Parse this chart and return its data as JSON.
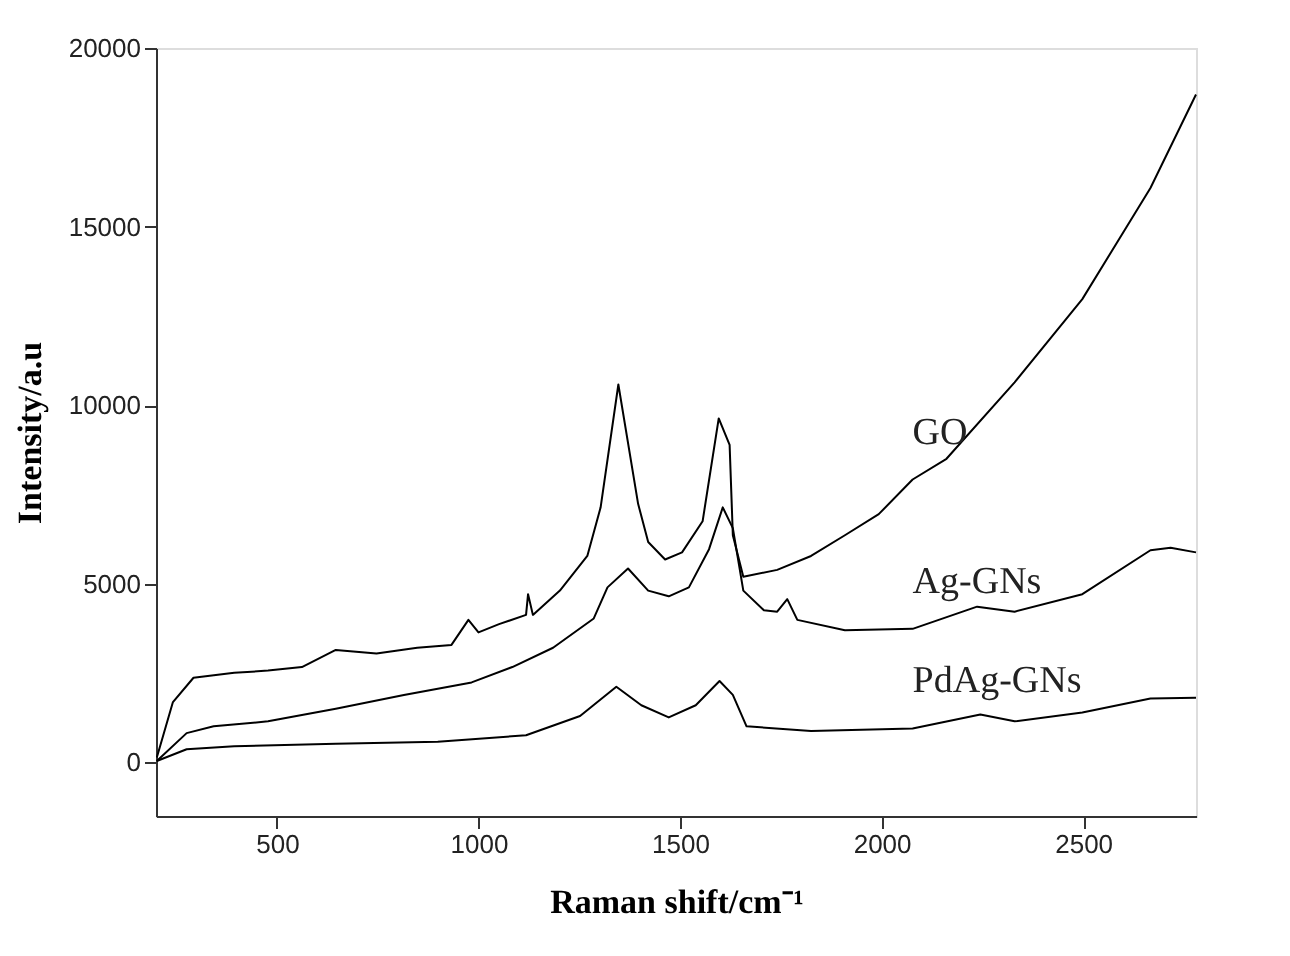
{
  "chart_data": {
    "type": "line",
    "xlabel": "Raman shift/cm⁻¹",
    "ylabel": "Intensity/a.u",
    "xlim": [
      200,
      2780
    ],
    "ylim": [
      -1500,
      20000
    ],
    "xticks": [
      500,
      1000,
      1500,
      2000,
      2500
    ],
    "yticks": [
      0,
      5000,
      10000,
      15000,
      20000
    ],
    "grid": false,
    "legend": false,
    "line_style": "solid",
    "series": [
      {
        "name": "GO",
        "color": "#000000",
        "x": [
          202,
          242,
          293,
          394,
          478,
          562,
          646,
          747,
          848,
          933,
          975,
          1000,
          1051,
          1118,
          1123,
          1135,
          1202,
          1270,
          1303,
          1347,
          1396,
          1421,
          1463,
          1505,
          1556,
          1596,
          1623,
          1631,
          1657,
          1741,
          1825,
          1909,
          1993,
          2077,
          2161,
          2330,
          2498,
          2667,
          2780
        ],
        "values": [
          136,
          1690,
          2370,
          2510,
          2570,
          2670,
          3150,
          3050,
          3210,
          3290,
          3990,
          3640,
          3870,
          4130,
          4710,
          4130,
          4810,
          5780,
          7140,
          10580,
          7240,
          6170,
          5680,
          5880,
          6750,
          9630,
          8890,
          6360,
          5200,
          5390,
          5780,
          6360,
          6950,
          7920,
          8500,
          10640,
          12970,
          16080,
          18700
        ]
      },
      {
        "name": "Ag-GNs",
        "color": "#000000",
        "x": [
          202,
          276,
          343,
          478,
          646,
          815,
          983,
          1084,
          1185,
          1286,
          1320,
          1371,
          1421,
          1472,
          1522,
          1572,
          1606,
          1631,
          1657,
          1708,
          1741,
          1766,
          1791,
          1909,
          2077,
          2237,
          2330,
          2498,
          2667,
          2717,
          2780
        ],
        "values": [
          40,
          820,
          1010,
          1150,
          1500,
          1890,
          2240,
          2670,
          3210,
          4030,
          4900,
          5430,
          4810,
          4650,
          4900,
          5970,
          7140,
          6560,
          4810,
          4260,
          4220,
          4570,
          3990,
          3700,
          3740,
          4360,
          4220,
          4710,
          5940,
          6010,
          5880
        ]
      },
      {
        "name": "PdAg-GNs",
        "color": "#000000",
        "x": [
          202,
          276,
          394,
          646,
          899,
          1118,
          1252,
          1342,
          1404,
          1472,
          1539,
          1598,
          1631,
          1665,
          1825,
          2077,
          2245,
          2330,
          2498,
          2667,
          2780
        ],
        "values": [
          40,
          370,
          450,
          525,
          580,
          760,
          1300,
          2120,
          1600,
          1260,
          1600,
          2280,
          1890,
          1010,
          880,
          950,
          1340,
          1150,
          1400,
          1790,
          1810
        ]
      }
    ]
  }
}
